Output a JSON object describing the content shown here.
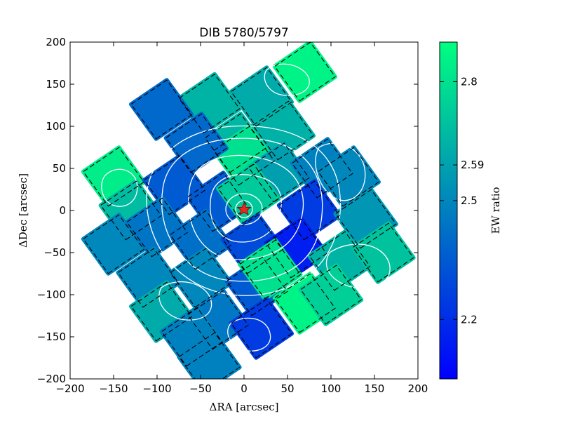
{
  "chart_data": {
    "type": "heatmap",
    "title": "DIB 5780/5797",
    "xlabel": "ΔRA [arcsec]",
    "ylabel": "ΔDec [arcsec]",
    "xlim": [
      -200,
      200
    ],
    "ylim": [
      -200,
      200
    ],
    "xticks": [
      -200,
      -150,
      -100,
      -50,
      0,
      50,
      100,
      150,
      200
    ],
    "yticks": [
      -200,
      -150,
      -100,
      -50,
      0,
      50,
      100,
      150,
      200
    ],
    "colorbar": {
      "label": "EW ratio",
      "range": [
        2.05,
        2.9
      ],
      "ticks": [
        2.2,
        2.5,
        2.59,
        2.8
      ],
      "colors": [
        "#0000ff",
        "#00ff80"
      ]
    },
    "star_marker": {
      "x": 0,
      "y": 0,
      "color": "#e8281c"
    },
    "pointings": [
      {
        "cx": 70,
        "cy": 165,
        "v": 2.86
      },
      {
        "cx": 20,
        "cy": 135,
        "v": 2.62
      },
      {
        "cx": -40,
        "cy": 127,
        "v": 2.65
      },
      {
        "cx": -95,
        "cy": 120,
        "v": 2.4
      },
      {
        "cx": 45,
        "cy": 95,
        "v": 2.64
      },
      {
        "cx": -10,
        "cy": 80,
        "v": 2.66
      },
      {
        "cx": 0,
        "cy": 65,
        "v": 2.8
      },
      {
        "cx": -55,
        "cy": 80,
        "v": 2.4
      },
      {
        "cx": 40,
        "cy": 45,
        "v": 2.58
      },
      {
        "cx": 90,
        "cy": 50,
        "v": 2.48
      },
      {
        "cx": 120,
        "cy": 40,
        "v": 2.5
      },
      {
        "cx": -150,
        "cy": 40,
        "v": 2.84
      },
      {
        "cx": -130,
        "cy": 0,
        "v": 2.68
      },
      {
        "cx": -80,
        "cy": 30,
        "v": 2.35
      },
      {
        "cx": -30,
        "cy": 10,
        "v": 2.35
      },
      {
        "cx": 5,
        "cy": 20,
        "v": 2.72
      },
      {
        "cx": 75,
        "cy": 0,
        "v": 2.25
      },
      {
        "cx": 140,
        "cy": -10,
        "v": 2.55
      },
      {
        "cx": -150,
        "cy": -40,
        "v": 2.5
      },
      {
        "cx": -100,
        "cy": -20,
        "v": 2.44
      },
      {
        "cx": -50,
        "cy": -35,
        "v": 2.42
      },
      {
        "cx": 10,
        "cy": -40,
        "v": 2.3
      },
      {
        "cx": 60,
        "cy": -45,
        "v": 2.15
      },
      {
        "cx": 110,
        "cy": -60,
        "v": 2.65
      },
      {
        "cx": 160,
        "cy": -50,
        "v": 2.7
      },
      {
        "cx": -110,
        "cy": -80,
        "v": 2.5
      },
      {
        "cx": -50,
        "cy": -80,
        "v": 2.5
      },
      {
        "cx": 15,
        "cy": -90,
        "v": 2.35
      },
      {
        "cx": 30,
        "cy": -70,
        "v": 2.8
      },
      {
        "cx": 70,
        "cy": -110,
        "v": 2.86
      },
      {
        "cx": 100,
        "cy": -100,
        "v": 2.74
      },
      {
        "cx": -95,
        "cy": -120,
        "v": 2.62
      },
      {
        "cx": -30,
        "cy": -130,
        "v": 2.45
      },
      {
        "cx": 20,
        "cy": -140,
        "v": 2.25
      },
      {
        "cx": -60,
        "cy": -150,
        "v": 2.48
      },
      {
        "cx": -40,
        "cy": -180,
        "v": 2.48
      }
    ]
  }
}
